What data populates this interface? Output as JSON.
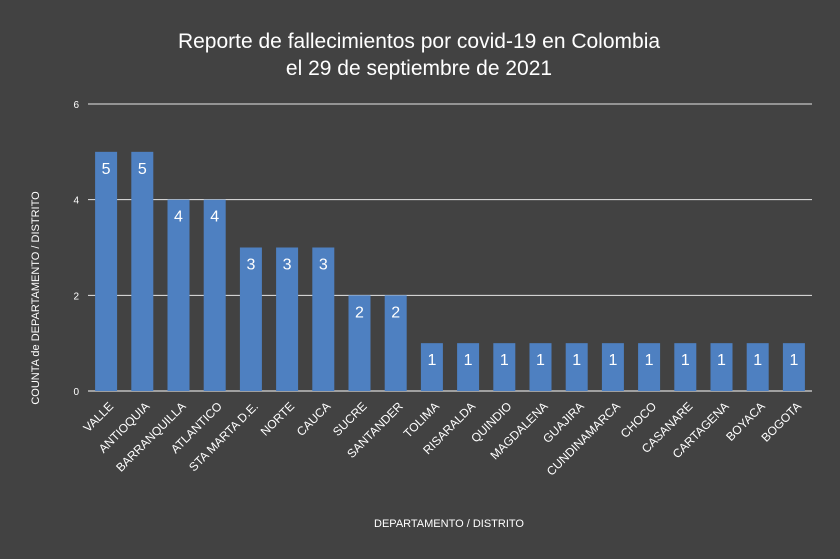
{
  "chart_data": {
    "type": "bar",
    "title": [
      "Reporte de fallecimientos por covid-19 en Colombia",
      "el 29 de septiembre de 2021"
    ],
    "xlabel": "DEPARTAMENTO / DISTRITO",
    "ylabel": "COUNTA de DEPARTAMENTO / DISTRITO",
    "categories": [
      "VALLE",
      "ANTIOQUIA",
      "BARRANQUILLA",
      "ATLANTICO",
      "STA MARTA D.E.",
      "NORTE",
      "CAUCA",
      "SUCRE",
      "SANTANDER",
      "TOLIMA",
      "RISARALDA",
      "QUINDIO",
      "MAGDALENA",
      "GUAJIRA",
      "CUNDINAMARCA",
      "CHOCO",
      "CASANARE",
      "CARTAGENA",
      "BOYACA",
      "BOGOTA"
    ],
    "values": [
      5,
      5,
      4,
      4,
      3,
      3,
      3,
      2,
      2,
      1,
      1,
      1,
      1,
      1,
      1,
      1,
      1,
      1,
      1,
      1
    ],
    "ylim": [
      0,
      6
    ],
    "yticks": [
      0,
      2,
      4,
      6
    ],
    "grid": true,
    "legend": "none",
    "data_labels": true,
    "colors": {
      "background": "#424242",
      "bar": "#4e80c1",
      "text": "#ffffff",
      "grid": "#e6e6e6"
    }
  }
}
